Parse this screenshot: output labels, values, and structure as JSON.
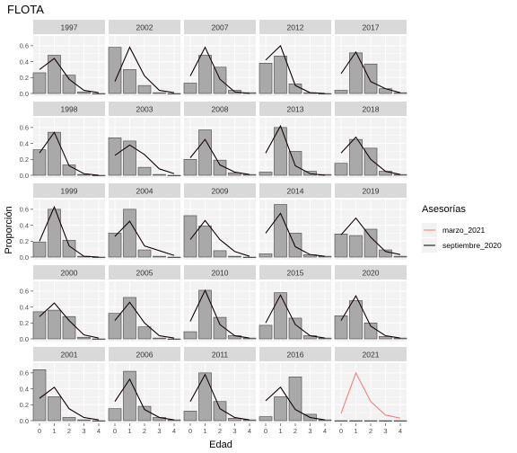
{
  "chart_data": {
    "type": "bar",
    "title": "FLOTA",
    "xlabel": "Edad",
    "ylabel": "Proporción",
    "x": [
      0,
      1,
      2,
      3,
      4
    ],
    "x_ticks": [
      "0",
      "1",
      "2",
      "3",
      "4"
    ],
    "y_ticks": [
      "0.0",
      "0.2",
      "0.4",
      "0.6"
    ],
    "ylim": [
      0,
      0.7
    ],
    "grid": true,
    "facet_columns": 5,
    "legend": {
      "title": "Asesorías",
      "placement": "right",
      "entries": [
        {
          "label": "marzo_2021",
          "color": "#f8766d"
        },
        {
          "label": "septiembre_2020",
          "color": "#000000"
        }
      ]
    },
    "colors": {
      "bar_fill": "#a9a9a9",
      "bar_stroke": "#444444",
      "panel_bg": "#f2f2f2",
      "strip_bg": "#d9d9d9",
      "marzo": "#f8766d",
      "septiembre": "#000000"
    },
    "panels": [
      {
        "year": "1997",
        "bars": [
          0.26,
          0.48,
          0.23,
          0.02,
          0.0
        ],
        "marzo": [
          0.3,
          0.44,
          0.18,
          0.04,
          0.01
        ],
        "septiembre": [
          0.3,
          0.44,
          0.18,
          0.04,
          0.01
        ]
      },
      {
        "year": "2002",
        "bars": [
          0.58,
          0.3,
          0.1,
          0.01,
          0.0
        ],
        "marzo": [
          0.15,
          0.58,
          0.22,
          0.04,
          0.01
        ],
        "septiembre": [
          0.15,
          0.58,
          0.22,
          0.04,
          0.01
        ]
      },
      {
        "year": "2007",
        "bars": [
          0.13,
          0.48,
          0.33,
          0.04,
          0.01
        ],
        "marzo": [
          0.22,
          0.58,
          0.18,
          0.02,
          0.0
        ],
        "septiembre": [
          0.22,
          0.58,
          0.18,
          0.02,
          0.0
        ]
      },
      {
        "year": "2012",
        "bars": [
          0.38,
          0.47,
          0.12,
          0.01,
          0.0
        ],
        "marzo": [
          0.42,
          0.6,
          0.1,
          0.01,
          0.0
        ],
        "septiembre": [
          0.42,
          0.6,
          0.1,
          0.01,
          0.0
        ]
      },
      {
        "year": "2017",
        "bars": [
          0.04,
          0.51,
          0.37,
          0.06,
          0.01
        ],
        "marzo": [
          0.25,
          0.52,
          0.15,
          0.06,
          0.01
        ],
        "septiembre": [
          0.25,
          0.52,
          0.15,
          0.06,
          0.01
        ]
      },
      {
        "year": "1998",
        "bars": [
          0.32,
          0.54,
          0.13,
          0.01,
          0.0
        ],
        "marzo": [
          0.28,
          0.54,
          0.12,
          0.02,
          0.0
        ],
        "septiembre": [
          0.28,
          0.54,
          0.12,
          0.02,
          0.0
        ]
      },
      {
        "year": "2003",
        "bars": [
          0.47,
          0.43,
          0.1,
          0.01,
          0.0
        ],
        "marzo": [
          0.25,
          0.38,
          0.26,
          0.08,
          0.02
        ],
        "septiembre": [
          0.25,
          0.38,
          0.26,
          0.08,
          0.02
        ]
      },
      {
        "year": "2008",
        "bars": [
          0.2,
          0.57,
          0.19,
          0.03,
          0.01
        ],
        "marzo": [
          0.22,
          0.45,
          0.13,
          0.04,
          0.01
        ],
        "septiembre": [
          0.22,
          0.45,
          0.13,
          0.04,
          0.01
        ]
      },
      {
        "year": "2013",
        "bars": [
          0.04,
          0.6,
          0.3,
          0.05,
          0.01
        ],
        "marzo": [
          0.28,
          0.62,
          0.12,
          0.02,
          0.0
        ],
        "septiembre": [
          0.28,
          0.62,
          0.12,
          0.02,
          0.0
        ]
      },
      {
        "year": "2018",
        "bars": [
          0.15,
          0.45,
          0.34,
          0.05,
          0.01
        ],
        "marzo": [
          0.28,
          0.48,
          0.2,
          0.05,
          0.01
        ],
        "septiembre": [
          0.28,
          0.48,
          0.2,
          0.05,
          0.01
        ]
      },
      {
        "year": "1999",
        "bars": [
          0.19,
          0.6,
          0.21,
          0.01,
          0.0
        ],
        "marzo": [
          0.2,
          0.63,
          0.14,
          0.01,
          0.0
        ],
        "septiembre": [
          0.2,
          0.63,
          0.14,
          0.01,
          0.0
        ]
      },
      {
        "year": "2004",
        "bars": [
          0.3,
          0.6,
          0.09,
          0.01,
          0.0
        ],
        "marzo": [
          0.26,
          0.45,
          0.14,
          0.08,
          0.02
        ],
        "septiembre": [
          0.26,
          0.45,
          0.14,
          0.08,
          0.02
        ]
      },
      {
        "year": "2009",
        "bars": [
          0.52,
          0.39,
          0.08,
          0.01,
          0.0
        ],
        "marzo": [
          0.22,
          0.46,
          0.22,
          0.07,
          0.01
        ],
        "septiembre": [
          0.22,
          0.46,
          0.22,
          0.07,
          0.01
        ]
      },
      {
        "year": "2014",
        "bars": [
          0.04,
          0.66,
          0.3,
          0.03,
          0.01
        ],
        "marzo": [
          0.3,
          0.55,
          0.13,
          0.03,
          0.01
        ],
        "septiembre": [
          0.3,
          0.55,
          0.13,
          0.03,
          0.01
        ]
      },
      {
        "year": "2019",
        "bars": [
          0.29,
          0.27,
          0.35,
          0.09,
          0.01
        ],
        "marzo": [
          0.28,
          0.49,
          0.25,
          0.07,
          0.03
        ],
        "septiembre": [
          0.28,
          0.49,
          0.25,
          0.07,
          0.03
        ]
      },
      {
        "year": "2000",
        "bars": [
          0.34,
          0.36,
          0.28,
          0.02,
          0.0
        ],
        "marzo": [
          0.28,
          0.45,
          0.23,
          0.05,
          0.01
        ],
        "septiembre": [
          0.28,
          0.45,
          0.23,
          0.05,
          0.01
        ]
      },
      {
        "year": "2005",
        "bars": [
          0.32,
          0.52,
          0.15,
          0.01,
          0.0
        ],
        "marzo": [
          0.23,
          0.46,
          0.2,
          0.04,
          0.01
        ],
        "septiembre": [
          0.23,
          0.46,
          0.2,
          0.04,
          0.01
        ]
      },
      {
        "year": "2010",
        "bars": [
          0.09,
          0.61,
          0.27,
          0.04,
          0.01
        ],
        "marzo": [
          0.22,
          0.61,
          0.18,
          0.04,
          0.01
        ],
        "septiembre": [
          0.22,
          0.61,
          0.18,
          0.04,
          0.01
        ]
      },
      {
        "year": "2015",
        "bars": [
          0.17,
          0.58,
          0.26,
          0.04,
          0.01
        ],
        "marzo": [
          0.2,
          0.55,
          0.18,
          0.04,
          0.01
        ],
        "septiembre": [
          0.2,
          0.55,
          0.18,
          0.04,
          0.01
        ]
      },
      {
        "year": "2020",
        "bars": [
          0.29,
          0.48,
          0.2,
          0.03,
          0.01
        ],
        "marzo": [
          0.23,
          0.54,
          0.16,
          0.04,
          0.01
        ],
        "septiembre": [
          0.23,
          0.54,
          0.16,
          0.04,
          0.01
        ]
      },
      {
        "year": "2001",
        "bars": [
          0.64,
          0.3,
          0.04,
          0.01,
          0.0
        ],
        "marzo": [
          0.28,
          0.42,
          0.15,
          0.04,
          0.01
        ],
        "septiembre": [
          0.28,
          0.42,
          0.15,
          0.04,
          0.01
        ]
      },
      {
        "year": "2006",
        "bars": [
          0.15,
          0.62,
          0.18,
          0.04,
          0.01
        ],
        "marzo": [
          0.24,
          0.52,
          0.14,
          0.04,
          0.01
        ],
        "septiembre": [
          0.24,
          0.52,
          0.14,
          0.04,
          0.01
        ]
      },
      {
        "year": "2011",
        "bars": [
          0.12,
          0.6,
          0.24,
          0.03,
          0.01
        ],
        "marzo": [
          0.24,
          0.58,
          0.15,
          0.04,
          0.01
        ],
        "septiembre": [
          0.24,
          0.58,
          0.15,
          0.04,
          0.01
        ]
      },
      {
        "year": "2016",
        "bars": [
          0.05,
          0.3,
          0.55,
          0.08,
          0.01
        ],
        "marzo": [
          0.25,
          0.42,
          0.14,
          0.04,
          0.01
        ],
        "septiembre": [
          0.25,
          0.42,
          0.14,
          0.04,
          0.01
        ]
      },
      {
        "year": "2021",
        "bars": [
          0.0,
          0.0,
          0.0,
          0.0,
          0.0
        ],
        "marzo": [
          0.09,
          0.6,
          0.24,
          0.07,
          0.03
        ],
        "septiembre": null
      }
    ]
  }
}
